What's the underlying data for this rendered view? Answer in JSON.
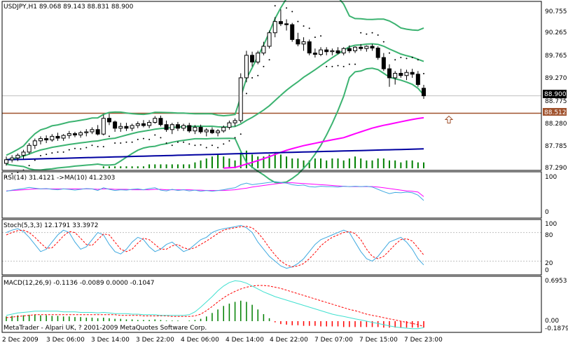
{
  "window": {
    "copyright": "MetaTrader - Alpari UK, ? 2001-2009 MetaQuotes Software Corp."
  },
  "colors": {
    "background": "#ffffff",
    "frame": "#000000",
    "bollinger": "#3cb371",
    "ma_magenta": "#ff00ff",
    "ma_navy": "#0000a0",
    "hline": "#a0522d",
    "volume": "#008000",
    "rsi": "#3fa9e0",
    "rsi_ma": "#ff00ff",
    "stoch_main": "#3fa9e0",
    "stoch_signal": "#ff0000",
    "macd_hist_pos": "#008000",
    "macd_hist_neg": "#ff0000",
    "macd_signal": "#ff0000",
    "macd_line": "#40e0d0",
    "price_label_bg": "#000000",
    "hline_label_bg": "#a0522d"
  },
  "main_panel": {
    "header": "USDJPY,H1  89.068 89.143 88.831 88.900",
    "price_axis": [
      "90.755",
      "90.265",
      "89.765",
      "89.270",
      "88.775",
      "88.280",
      "87.785",
      "87.290"
    ],
    "current_price": "88.900",
    "hline_price": "88.512",
    "arrow_icon": "up-arrow-icon"
  },
  "rsi_panel": {
    "header": "RSI(14) 31.4121  ->MA(10) 41.2303",
    "axis": [
      "100",
      "0"
    ]
  },
  "stoch_panel": {
    "header": "Stoch(5,3,3) 12.1791 33.3972",
    "axis": [
      "100",
      "80",
      "20",
      "0"
    ]
  },
  "macd_panel": {
    "header": "MACD(12,26,9) -0.1136 -0.0089 0.0000 -0.1047",
    "axis": [
      "0.6953",
      "0.00",
      "-0.1879"
    ]
  },
  "time_axis": [
    "2 Dec 2009",
    "3 Dec 06:00",
    "3 Dec 14:00",
    "3 Dec 22:00",
    "4 Dec 06:00",
    "4 Dec 14:00",
    "4 Dec 22:00",
    "7 Dec 07:00",
    "7 Dec 15:00",
    "7 Dec 23:00"
  ],
  "chart_data": {
    "type": "line",
    "candles": [
      [
        87.4,
        87.55,
        87.35,
        87.48
      ],
      [
        87.48,
        87.58,
        87.42,
        87.52
      ],
      [
        87.52,
        87.62,
        87.45,
        87.58
      ],
      [
        87.58,
        87.7,
        87.5,
        87.65
      ],
      [
        87.65,
        87.85,
        87.6,
        87.8
      ],
      [
        87.8,
        87.95,
        87.72,
        87.9
      ],
      [
        87.9,
        88.0,
        87.82,
        87.95
      ],
      [
        87.95,
        88.02,
        87.85,
        87.92
      ],
      [
        87.92,
        88.05,
        87.88,
        88.0
      ],
      [
        88.0,
        88.08,
        87.9,
        87.96
      ],
      [
        87.96,
        88.05,
        87.9,
        88.02
      ],
      [
        88.02,
        88.12,
        87.95,
        88.06
      ],
      [
        88.06,
        88.1,
        87.98,
        88.03
      ],
      [
        88.03,
        88.12,
        87.97,
        88.08
      ],
      [
        88.08,
        88.16,
        88.0,
        88.1
      ],
      [
        88.1,
        88.2,
        88.05,
        88.15
      ],
      [
        88.15,
        88.25,
        88.02,
        88.05
      ],
      [
        88.05,
        88.48,
        88.02,
        88.4
      ],
      [
        88.4,
        88.5,
        88.25,
        88.32
      ],
      [
        88.32,
        88.35,
        88.1,
        88.18
      ],
      [
        88.18,
        88.3,
        88.1,
        88.22
      ],
      [
        88.22,
        88.3,
        88.12,
        88.18
      ],
      [
        88.18,
        88.28,
        88.12,
        88.24
      ],
      [
        88.24,
        88.33,
        88.18,
        88.28
      ],
      [
        88.28,
        88.36,
        88.2,
        88.24
      ],
      [
        88.24,
        88.36,
        88.18,
        88.31
      ],
      [
        88.31,
        88.45,
        88.28,
        88.4
      ],
      [
        88.4,
        88.46,
        88.22,
        88.26
      ],
      [
        88.26,
        88.35,
        88.1,
        88.15
      ],
      [
        88.15,
        88.3,
        88.05,
        88.26
      ],
      [
        88.26,
        88.32,
        88.12,
        88.18
      ],
      [
        88.18,
        88.28,
        88.12,
        88.24
      ],
      [
        88.24,
        88.3,
        88.08,
        88.12
      ],
      [
        88.12,
        88.25,
        88.05,
        88.2
      ],
      [
        88.2,
        88.26,
        88.06,
        88.1
      ],
      [
        88.1,
        88.18,
        88.0,
        88.14
      ],
      [
        88.14,
        88.2,
        88.05,
        88.08
      ],
      [
        88.08,
        88.16,
        88.0,
        88.12
      ],
      [
        88.12,
        88.24,
        88.08,
        88.2
      ],
      [
        88.2,
        88.35,
        88.15,
        88.3
      ],
      [
        88.3,
        88.4,
        88.22,
        88.35
      ],
      [
        88.35,
        89.4,
        88.3,
        89.3
      ],
      [
        89.3,
        89.9,
        89.2,
        89.8
      ],
      [
        89.8,
        89.88,
        89.55,
        89.65
      ],
      [
        89.65,
        89.9,
        89.6,
        89.85
      ],
      [
        89.85,
        90.1,
        89.8,
        90.0
      ],
      [
        90.0,
        90.35,
        89.95,
        90.3
      ],
      [
        90.3,
        90.65,
        90.2,
        90.55
      ],
      [
        90.55,
        90.82,
        90.45,
        90.5
      ],
      [
        90.5,
        90.6,
        90.35,
        90.48
      ],
      [
        90.48,
        90.52,
        90.1,
        90.15
      ],
      [
        90.15,
        90.3,
        90.0,
        90.05
      ],
      [
        90.05,
        90.2,
        89.9,
        90.1
      ],
      [
        90.1,
        90.15,
        89.8,
        89.85
      ],
      [
        89.85,
        89.95,
        89.75,
        89.82
      ],
      [
        89.82,
        89.98,
        89.78,
        89.92
      ],
      [
        89.92,
        89.98,
        89.8,
        89.88
      ],
      [
        89.88,
        89.95,
        89.8,
        89.9
      ],
      [
        89.9,
        89.98,
        89.82,
        89.85
      ],
      [
        89.85,
        89.98,
        89.8,
        89.95
      ],
      [
        89.95,
        90.02,
        89.85,
        89.9
      ],
      [
        89.9,
        90.0,
        89.85,
        89.98
      ],
      [
        89.98,
        90.05,
        89.9,
        89.95
      ],
      [
        89.95,
        90.02,
        89.88,
        90.0
      ],
      [
        90.0,
        90.05,
        89.9,
        89.96
      ],
      [
        89.96,
        90.0,
        89.7,
        89.75
      ],
      [
        89.75,
        89.85,
        89.45,
        89.5
      ],
      [
        89.5,
        89.6,
        89.1,
        89.3
      ],
      [
        89.3,
        89.45,
        89.15,
        89.4
      ],
      [
        89.4,
        89.5,
        89.3,
        89.35
      ],
      [
        89.35,
        89.48,
        89.25,
        89.42
      ],
      [
        89.42,
        89.5,
        89.3,
        89.38
      ],
      [
        89.38,
        89.45,
        89.1,
        89.15
      ],
      [
        89.068,
        89.143,
        88.831,
        88.9
      ]
    ],
    "series": [
      {
        "name": "RSI",
        "values": [
          55,
          58,
          60,
          62,
          65,
          63,
          61,
          62,
          60,
          59,
          61,
          60,
          58,
          60,
          62,
          61,
          57,
          64,
          60,
          57,
          59,
          58,
          60,
          61,
          59,
          62,
          64,
          58,
          56,
          60,
          57,
          59,
          56,
          58,
          55,
          57,
          55,
          57,
          59,
          62,
          64,
          72,
          76,
          72,
          74,
          76,
          78,
          80,
          78,
          76,
          72,
          70,
          71,
          67,
          66,
          68,
          67,
          67,
          66,
          68,
          67,
          68,
          67,
          68,
          66,
          60,
          54,
          49,
          52,
          51,
          53,
          51,
          45,
          31
        ]
      },
      {
        "name": "RSI MA",
        "values": [
          56,
          57,
          58,
          59,
          60,
          61,
          61,
          61,
          61,
          61,
          61,
          61,
          61,
          61,
          61,
          61,
          60,
          61,
          61,
          60,
          60,
          60,
          59,
          59,
          59,
          59,
          60,
          60,
          59,
          59,
          59,
          59,
          59,
          58,
          58,
          57,
          57,
          57,
          57,
          58,
          59,
          61,
          63,
          66,
          68,
          70,
          72,
          74,
          76,
          77,
          77,
          76,
          75,
          74,
          73,
          72,
          71,
          70,
          69,
          68,
          67,
          67,
          67,
          67,
          67,
          66,
          64,
          62,
          60,
          58,
          56,
          55,
          53,
          41
        ]
      },
      {
        "name": "Stoch main",
        "values": [
          80,
          85,
          88,
          82,
          70,
          55,
          40,
          45,
          60,
          75,
          85,
          80,
          60,
          45,
          50,
          65,
          80,
          75,
          55,
          40,
          35,
          45,
          60,
          70,
          65,
          50,
          40,
          45,
          55,
          60,
          50,
          40,
          45,
          55,
          65,
          70,
          80,
          85,
          88,
          90,
          92,
          95,
          90,
          80,
          60,
          45,
          30,
          20,
          10,
          5,
          8,
          15,
          25,
          40,
          55,
          65,
          70,
          75,
          80,
          85,
          80,
          60,
          40,
          25,
          20,
          30,
          45,
          60,
          65,
          70,
          60,
          45,
          25,
          12
        ]
      },
      {
        "name": "Stoch signal",
        "values": [
          75,
          80,
          84,
          85,
          80,
          70,
          58,
          47,
          48,
          60,
          73,
          82,
          80,
          68,
          55,
          53,
          65,
          77,
          75,
          60,
          45,
          40,
          45,
          58,
          68,
          65,
          55,
          45,
          45,
          52,
          55,
          48,
          45,
          48,
          55,
          62,
          70,
          78,
          85,
          88,
          90,
          92,
          93,
          90,
          80,
          65,
          48,
          33,
          20,
          12,
          8,
          10,
          15,
          25,
          38,
          52,
          62,
          70,
          75,
          80,
          82,
          78,
          65,
          45,
          30,
          25,
          30,
          42,
          55,
          65,
          67,
          62,
          48,
          33
        ]
      },
      {
        "name": "MACD hist",
        "values": [
          0.08,
          0.09,
          0.1,
          0.1,
          0.11,
          0.11,
          0.1,
          0.1,
          0.09,
          0.09,
          0.08,
          0.08,
          0.07,
          0.07,
          0.06,
          0.06,
          0.05,
          0.06,
          0.05,
          0.04,
          0.04,
          0.03,
          0.03,
          0.02,
          0.02,
          0.02,
          0.03,
          0.02,
          0.01,
          0.01,
          0.01,
          0.0,
          0.01,
          0.02,
          0.04,
          0.08,
          0.14,
          0.2,
          0.26,
          0.3,
          0.33,
          0.35,
          0.33,
          0.28,
          0.2,
          0.12,
          0.05,
          -0.02,
          -0.05,
          -0.06,
          -0.07,
          -0.07,
          -0.08,
          -0.08,
          -0.08,
          -0.09,
          -0.09,
          -0.09,
          -0.09,
          -0.1,
          -0.1,
          -0.1,
          -0.1,
          -0.1,
          -0.1,
          -0.1,
          -0.11,
          -0.11,
          -0.11,
          -0.11,
          -0.11,
          -0.11,
          -0.11,
          -0.11
        ]
      },
      {
        "name": "MACD signal",
        "values": [
          0.06,
          0.07,
          0.08,
          0.09,
          0.1,
          0.11,
          0.11,
          0.11,
          0.11,
          0.11,
          0.11,
          0.11,
          0.11,
          0.11,
          0.11,
          0.11,
          0.11,
          0.11,
          0.11,
          0.11,
          0.1,
          0.1,
          0.1,
          0.1,
          0.09,
          0.09,
          0.09,
          0.09,
          0.09,
          0.08,
          0.08,
          0.08,
          0.08,
          0.09,
          0.12,
          0.18,
          0.25,
          0.33,
          0.4,
          0.46,
          0.51,
          0.55,
          0.58,
          0.6,
          0.61,
          0.61,
          0.6,
          0.58,
          0.56,
          0.53,
          0.5,
          0.47,
          0.44,
          0.41,
          0.38,
          0.35,
          0.32,
          0.29,
          0.26,
          0.23,
          0.2,
          0.18,
          0.15,
          0.12,
          0.1,
          0.08,
          0.06,
          0.04,
          0.02,
          0.0,
          -0.02,
          -0.04,
          -0.06,
          -0.09
        ]
      },
      {
        "name": "MACD main",
        "values": [
          0.1,
          0.12,
          0.14,
          0.15,
          0.16,
          0.17,
          0.17,
          0.17,
          0.17,
          0.17,
          0.16,
          0.16,
          0.16,
          0.15,
          0.15,
          0.15,
          0.14,
          0.15,
          0.14,
          0.13,
          0.13,
          0.13,
          0.12,
          0.12,
          0.11,
          0.11,
          0.11,
          0.1,
          0.1,
          0.1,
          0.1,
          0.1,
          0.11,
          0.16,
          0.24,
          0.33,
          0.42,
          0.52,
          0.6,
          0.66,
          0.69,
          0.68,
          0.65,
          0.6,
          0.55,
          0.5,
          0.46,
          0.42,
          0.39,
          0.36,
          0.33,
          0.3,
          0.27,
          0.24,
          0.21,
          0.18,
          0.15,
          0.12,
          0.1,
          0.08,
          0.06,
          0.04,
          0.02,
          0.0,
          -0.02,
          -0.04,
          -0.06,
          -0.08,
          -0.1,
          -0.11,
          -0.12,
          -0.13,
          -0.13,
          -0.11
        ]
      }
    ],
    "volume": [
      0.0,
      0.0,
      0.0,
      0.0,
      0.0,
      0.0,
      0.0,
      0.0,
      0.0,
      0.0,
      0.0,
      0.0,
      0.0,
      0.0,
      0.0,
      0.0,
      0.0,
      0.1,
      0.1,
      0.1,
      0.1,
      0.1,
      0.1,
      0.1,
      0.1,
      0.2,
      0.2,
      0.2,
      0.2,
      0.2,
      0.2,
      0.2,
      0.2,
      0.3,
      0.4,
      0.5,
      0.6,
      0.7,
      0.6,
      0.5,
      0.4,
      0.8,
      0.9,
      0.7,
      0.6,
      0.6,
      0.7,
      0.8,
      0.7,
      0.6,
      0.5,
      0.5,
      0.4,
      0.4,
      0.5,
      0.5,
      0.4,
      0.5,
      0.5,
      0.4,
      0.5,
      0.6,
      0.5,
      0.4,
      0.4,
      0.5,
      0.5,
      0.4,
      0.4,
      0.3,
      0.4,
      0.4,
      0.3,
      0.3
    ],
    "ylim": [
      87.29,
      90.95
    ]
  }
}
